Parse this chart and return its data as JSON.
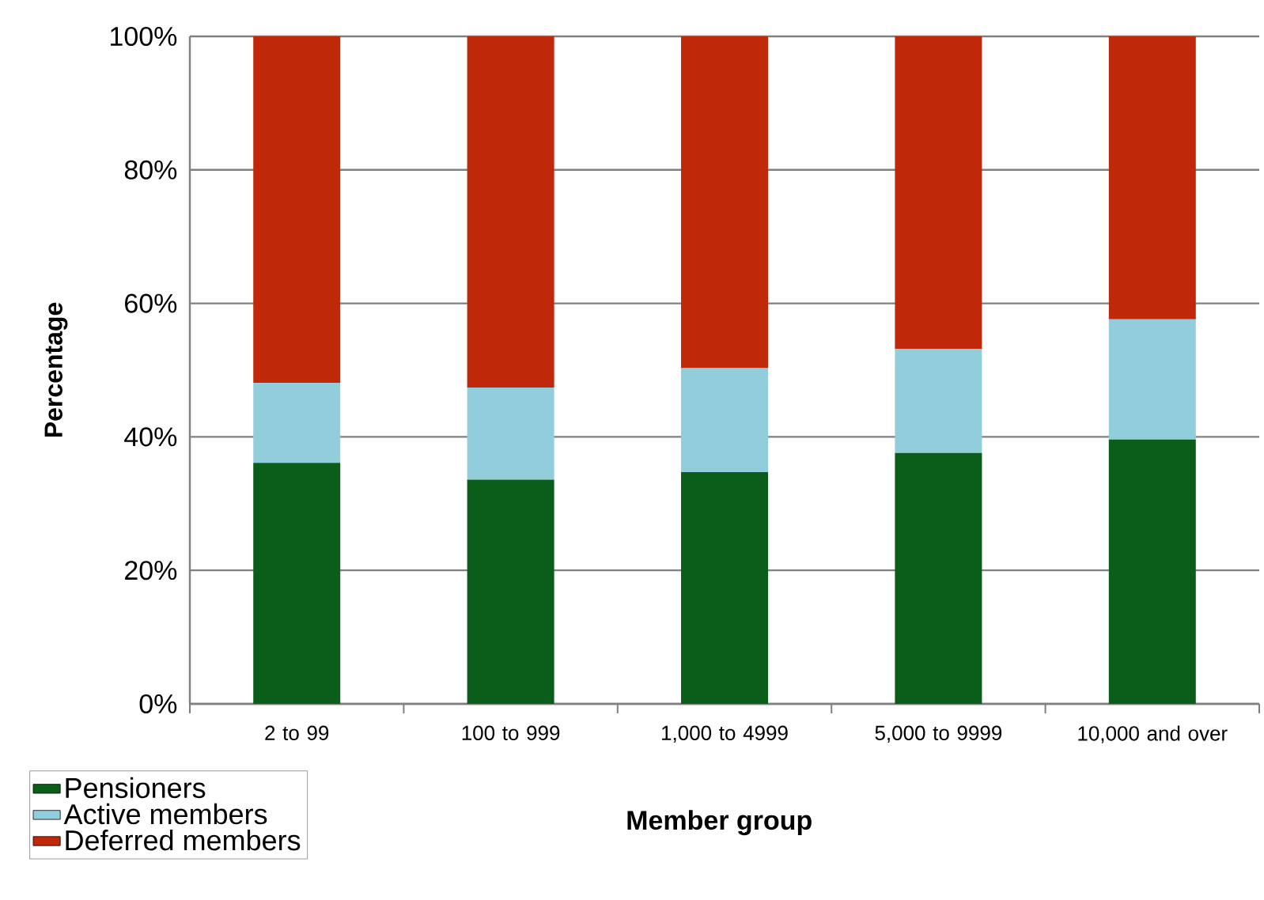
{
  "chart_data": {
    "type": "bar",
    "stacked": true,
    "xlabel": "Member group",
    "ylabel": "Percentage",
    "categories": [
      "2 to 99",
      "100 to 999",
      "1,000 to 4999",
      "5,000 to 9999",
      "10,000 and over"
    ],
    "series": [
      {
        "name": "Pensioners",
        "color": "#0a5e1a",
        "values": [
          36.1,
          33.6,
          34.7,
          37.6,
          39.6
        ]
      },
      {
        "name": "Active members",
        "color": "#92cddc",
        "values": [
          12.0,
          13.8,
          15.6,
          15.6,
          18.0
        ]
      },
      {
        "name": "Deferred members",
        "color": "#c0280a",
        "values": [
          51.9,
          52.6,
          49.7,
          46.8,
          42.4
        ]
      }
    ],
    "ylim": [
      0,
      100
    ],
    "yticks": [
      {
        "value": 0,
        "label": "0%"
      },
      {
        "value": 20,
        "label": "20%"
      },
      {
        "value": 40,
        "label": "40%"
      },
      {
        "value": 60,
        "label": "60%"
      },
      {
        "value": 80,
        "label": "80%"
      },
      {
        "value": 100,
        "label": "100%"
      }
    ],
    "grid": "y",
    "legend": "bottom left"
  }
}
